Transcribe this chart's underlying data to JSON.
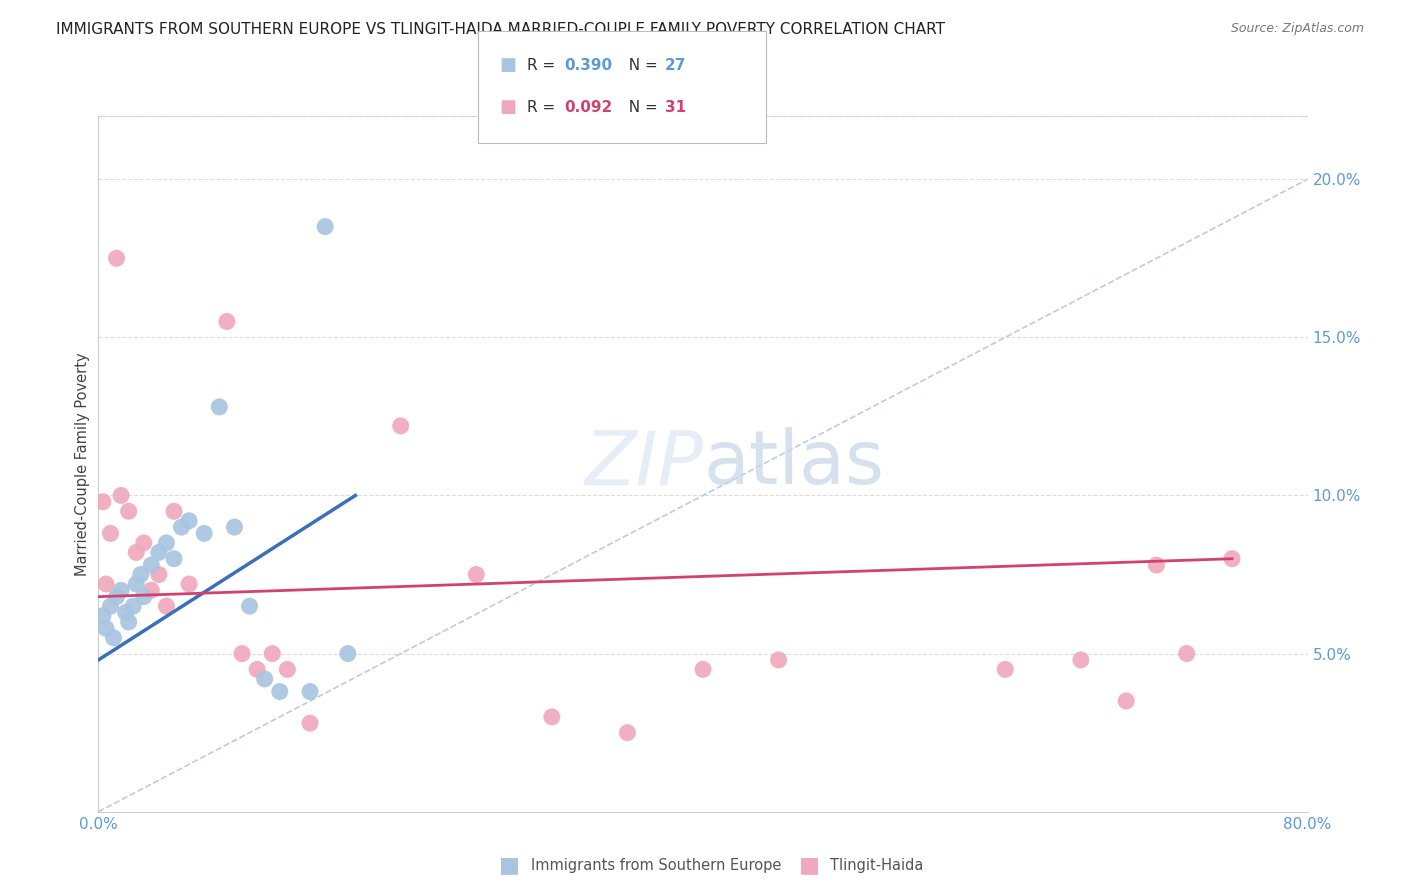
{
  "title": "IMMIGRANTS FROM SOUTHERN EUROPE VS TLINGIT-HAIDA MARRIED-COUPLE FAMILY POVERTY CORRELATION CHART",
  "source": "Source: ZipAtlas.com",
  "ylabel": "Married-Couple Family Poverty",
  "R_blue": 0.39,
  "N_blue": 27,
  "R_pink": 0.092,
  "N_pink": 31,
  "color_blue": "#a8c4e0",
  "color_pink": "#f0a8bc",
  "color_trend_blue": "#3a6fba",
  "color_trend_pink": "#d44070",
  "color_ref_line": "#bbccdd",
  "color_grid": "#dddddd",
  "color_axis_blue": "#5b9bd5",
  "xlim": [
    0,
    80
  ],
  "ylim": [
    0,
    22
  ],
  "yticks": [
    5.0,
    10.0,
    15.0,
    20.0
  ],
  "ytick_labels": [
    "5.0%",
    "10.0%",
    "15.0%",
    "20.0%"
  ],
  "blue_x": [
    0.3,
    0.5,
    0.8,
    1.0,
    1.2,
    1.5,
    1.8,
    2.0,
    2.3,
    2.5,
    2.8,
    3.0,
    3.5,
    4.0,
    4.5,
    5.0,
    5.5,
    6.0,
    7.0,
    8.0,
    9.0,
    10.0,
    11.0,
    12.0,
    14.0,
    15.0,
    16.5
  ],
  "blue_y": [
    6.2,
    5.8,
    6.5,
    5.5,
    6.8,
    7.0,
    6.3,
    6.0,
    6.5,
    7.2,
    7.5,
    6.8,
    7.8,
    8.2,
    8.5,
    8.0,
    9.0,
    9.2,
    8.8,
    12.8,
    9.0,
    6.5,
    4.2,
    3.8,
    3.8,
    18.5,
    5.0
  ],
  "pink_x": [
    0.3,
    0.5,
    0.8,
    1.2,
    1.5,
    2.0,
    2.5,
    3.0,
    3.5,
    4.0,
    4.5,
    5.0,
    6.0,
    8.5,
    9.5,
    10.5,
    11.5,
    12.5,
    14.0,
    20.0,
    25.0,
    30.0,
    35.0,
    40.0,
    45.0,
    60.0,
    65.0,
    68.0,
    70.0,
    72.0,
    75.0
  ],
  "pink_y": [
    9.8,
    7.2,
    8.8,
    17.5,
    10.0,
    9.5,
    8.2,
    8.5,
    7.0,
    7.5,
    6.5,
    9.5,
    7.2,
    15.5,
    5.0,
    4.5,
    5.0,
    4.5,
    2.8,
    12.2,
    7.5,
    3.0,
    2.5,
    4.5,
    4.8,
    4.5,
    4.8,
    3.5,
    7.8,
    5.0,
    8.0
  ],
  "blue_trend_x0": 0.0,
  "blue_trend_y0": 4.8,
  "blue_trend_x1": 17.0,
  "blue_trend_y1": 10.0,
  "pink_trend_x0": 0.0,
  "pink_trend_y0": 6.8,
  "pink_trend_x1": 75.0,
  "pink_trend_y1": 8.0,
  "watermark_zip": "ZIP",
  "watermark_atlas": "atlas",
  "legend_label_blue": "Immigrants from Southern Europe",
  "legend_label_pink": "Tlingit-Haida"
}
